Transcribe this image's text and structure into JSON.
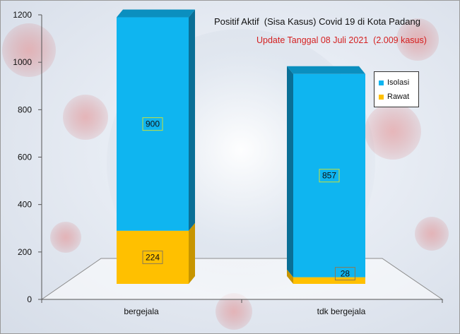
{
  "chart_data": {
    "type": "bar",
    "stacked": true,
    "three_d": true,
    "title": "Positif Aktif  (Sisa Kasus) Covid 19 di Kota Padang",
    "subtitle": "Update Tanggal 08 Juli 2021  (2.009 kasus)",
    "categories": [
      "bergejala",
      "tdk bergejala"
    ],
    "series": [
      {
        "name": "Rawat",
        "values": [
          224,
          28
        ],
        "color": "#ffc000"
      },
      {
        "name": "Isolasi",
        "values": [
          900,
          857
        ],
        "color": "#0fb5f0"
      }
    ],
    "ylim": [
      0,
      1200
    ],
    "yticks": [
      "0",
      "200",
      "400",
      "600",
      "800",
      "1000",
      "1200"
    ],
    "legend_position": "right",
    "legend": [
      {
        "name": "Isolasi",
        "color": "#0fb5f0"
      },
      {
        "name": "Rawat",
        "color": "#ffc000"
      }
    ]
  }
}
